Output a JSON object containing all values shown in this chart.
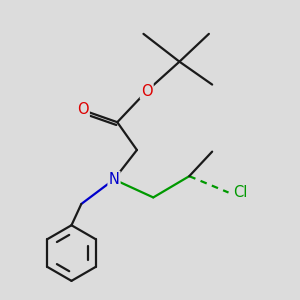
{
  "background_color": "#dcdcdc",
  "bond_color": "#1a1a1a",
  "bond_width": 1.6,
  "atom_colors": {
    "O": "#dd0000",
    "N": "#0000cc",
    "Cl": "#009900"
  },
  "font_size_atoms": 10.5
}
